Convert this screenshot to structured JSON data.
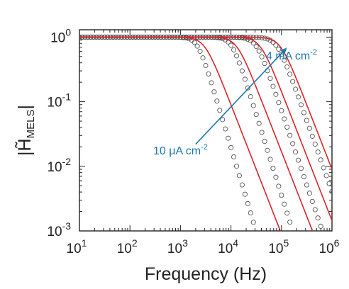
{
  "chart_data": {
    "type": "scatter",
    "title": "",
    "xlabel": "Frequency (Hz)",
    "ylabel": "|H̃MELS|",
    "ylabel_main": "|H̃",
    "ylabel_sub": "MELS",
    "ylabel_close": "|",
    "xscale": "log",
    "yscale": "log",
    "xlim": [
      10,
      1000000
    ],
    "ylim": [
      0.001,
      1.3
    ],
    "x_ticks": [
      {
        "base": "10",
        "exp": "1",
        "value": 10
      },
      {
        "base": "10",
        "exp": "2",
        "value": 100
      },
      {
        "base": "10",
        "exp": "3",
        "value": 1000
      },
      {
        "base": "10",
        "exp": "4",
        "value": 10000
      },
      {
        "base": "10",
        "exp": "5",
        "value": 100000
      },
      {
        "base": "10",
        "exp": "6",
        "value": 1000000
      }
    ],
    "y_ticks": [
      {
        "base": "10",
        "exp": "0",
        "value": 1
      },
      {
        "base": "10",
        "exp": "-1",
        "value": 0.1
      },
      {
        "base": "10",
        "exp": "-2",
        "value": 0.01
      },
      {
        "base": "10",
        "exp": "-3",
        "value": 0.001
      }
    ],
    "grid": false,
    "series": [
      {
        "data_style": "open-circles",
        "fit_style": "red-line",
        "fc_fit": 3000,
        "order_fit": 2.0,
        "fc_data": 2200,
        "order_data": 2.6
      },
      {
        "data_style": "open-circles",
        "fit_style": "red-line",
        "fc_fit": 13000,
        "order_fit": 2.0,
        "fc_data": 10500,
        "order_data": 2.5
      },
      {
        "data_style": "open-circles",
        "fit_style": "red-line",
        "fc_fit": 38000,
        "order_fit": 2.0,
        "fc_data": 32000,
        "order_data": 2.3
      },
      {
        "data_style": "open-circles",
        "fit_style": "red-line",
        "fc_fit": 95000,
        "order_fit": 2.0,
        "fc_data": 82000,
        "order_data": 2.2
      }
    ],
    "annotations": [
      {
        "text": "10 μA cm",
        "sup": "-2",
        "color": "#1b78ad"
      },
      {
        "text": "4 mA cm",
        "sup": "-2",
        "color": "#1b78ad"
      }
    ],
    "arrow": {
      "from": [
        2000,
        0.022
      ],
      "to": [
        120000,
        0.65
      ],
      "color": "#1b78ad"
    },
    "colors": {
      "data": "#555555",
      "fit": "#d9262b",
      "axes": "#222222",
      "annotation": "#1b78ad"
    }
  }
}
